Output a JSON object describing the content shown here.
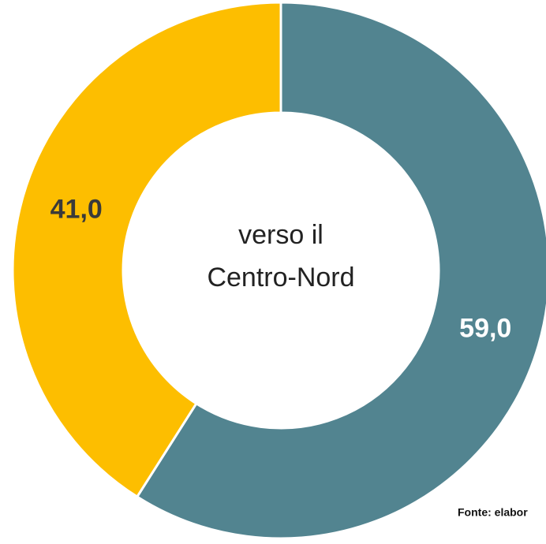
{
  "chart_data": {
    "type": "donut",
    "values": [
      59.0,
      41.0
    ],
    "value_labels": [
      "59,0",
      "41,0"
    ],
    "colors": [
      "#528490",
      "#fdbe00"
    ],
    "label_colors": [
      "#ffffff",
      "#3a3a3a"
    ],
    "center_label": [
      "verso il",
      "Centro-Nord"
    ],
    "source": "Fonte: elabor"
  }
}
